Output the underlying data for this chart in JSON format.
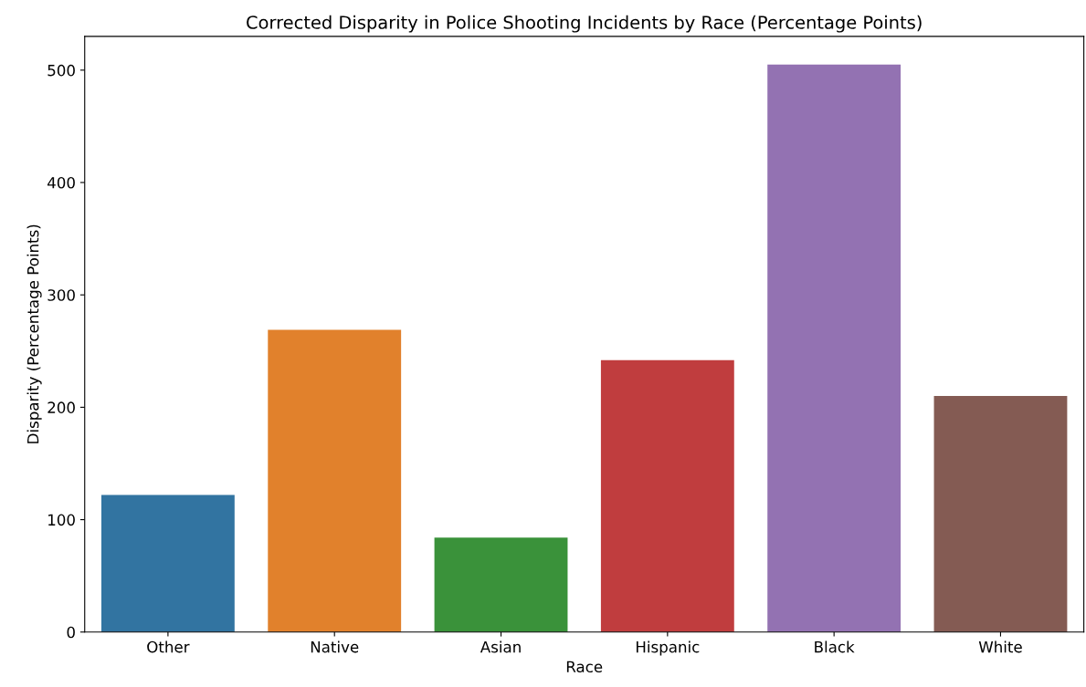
{
  "chart_data": {
    "type": "bar",
    "title": "Corrected Disparity in Police Shooting Incidents by Race (Percentage Points)",
    "xlabel": "Race",
    "ylabel": "Disparity (Percentage Points)",
    "categories": [
      "Other",
      "Native",
      "Asian",
      "Hispanic",
      "Black",
      "White"
    ],
    "values": [
      122,
      269,
      84,
      242,
      505,
      210
    ],
    "colors": [
      "#3274a1",
      "#e1812c",
      "#3a923a",
      "#c03d3e",
      "#9372b2",
      "#845b53"
    ],
    "ylim": [
      0,
      530
    ],
    "yticks": [
      0,
      100,
      200,
      300,
      400,
      500
    ],
    "grid": false,
    "legend": false
  }
}
